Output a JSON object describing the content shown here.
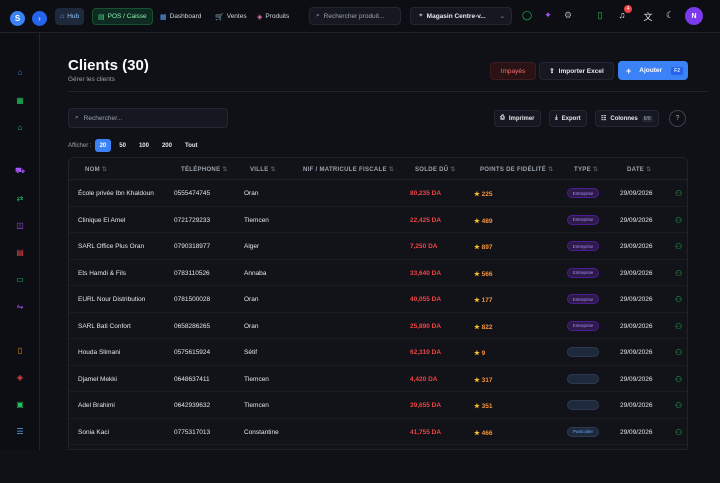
{
  "app": {
    "logo_letter": "S",
    "collapse_icon": "chevron-right-icon"
  },
  "topnav": {
    "hub": "Hub",
    "pos": "POS / Caisse",
    "dashboard": "Dashboard",
    "ventes": "Ventes",
    "produits": "Produits",
    "search_placeholder": "Rechercher produit...",
    "store": "Magasin Centre-v...",
    "notifications_count": "4",
    "avatar_letter": "N"
  },
  "page": {
    "title": "Clients (30)",
    "subtitle": "Gérer les clients",
    "impayes_label": "Impayés",
    "import_label": "Importer Excel",
    "add_label": "Ajouter",
    "add_shortcut": "F2",
    "search_placeholder": "Rechercher...",
    "print_label": "Imprimer",
    "export_label": "Export",
    "columns_label": "Colonnes",
    "columns_count": "8/8",
    "show_label": "Afficher :",
    "page_sizes": [
      "20",
      "50",
      "100",
      "200",
      "Tout"
    ],
    "page_size_selected": "20"
  },
  "table": {
    "columns": [
      "NOM",
      "TÉLÉPHONE",
      "VILLE",
      "NIF / MATRICULE FISCALE",
      "SOLDE DÛ",
      "POINTS DE FIDÉLITÉ",
      "TYPE",
      "DATE"
    ],
    "rows": [
      {
        "nom": "École privée Ibn Khaldoun",
        "tel": "0555474745",
        "ville": "Oran",
        "nif": "",
        "solde": "80,235 DA",
        "points": "225",
        "type": "Entreprise",
        "type_style": "ent",
        "date": "29/09/2026"
      },
      {
        "nom": "Clinique El Amel",
        "tel": "0721729233",
        "ville": "Tlemcen",
        "nif": "",
        "solde": "22,425 DA",
        "points": "489",
        "type": "Entreprise",
        "type_style": "ent",
        "date": "29/09/2026"
      },
      {
        "nom": "SARL Office Plus Oran",
        "tel": "0790318977",
        "ville": "Alger",
        "nif": "",
        "solde": "7,250 DA",
        "points": "897",
        "type": "Entreprise",
        "type_style": "ent",
        "date": "29/09/2026"
      },
      {
        "nom": "Ets Hamdi & Fils",
        "tel": "0783110526",
        "ville": "Annaba",
        "nif": "",
        "solde": "33,640 DA",
        "points": "566",
        "type": "Entreprise",
        "type_style": "ent",
        "date": "29/09/2026"
      },
      {
        "nom": "EURL Nour Distribution",
        "tel": "0781500028",
        "ville": "Oran",
        "nif": "",
        "solde": "40,055 DA",
        "points": "177",
        "type": "Entreprise",
        "type_style": "ent",
        "date": "29/09/2026"
      },
      {
        "nom": "SARL Bati Confort",
        "tel": "0658286265",
        "ville": "Oran",
        "nif": "",
        "solde": "25,890 DA",
        "points": "822",
        "type": "Entreprise",
        "type_style": "ent",
        "date": "29/09/2026"
      },
      {
        "nom": "Houda Slimani",
        "tel": "0575615924",
        "ville": "Sétif",
        "nif": "",
        "solde": "62,310 DA",
        "points": "9",
        "type": "",
        "type_style": "empty",
        "date": "29/09/2026"
      },
      {
        "nom": "Djamel Mekki",
        "tel": "0648637411",
        "ville": "Tlemcen",
        "nif": "",
        "solde": "4,420 DA",
        "points": "317",
        "type": "",
        "type_style": "empty",
        "date": "29/09/2026"
      },
      {
        "nom": "Adel Brahimi",
        "tel": "0642939632",
        "ville": "Tlemcen",
        "nif": "",
        "solde": "39,655 DA",
        "points": "351",
        "type": "",
        "type_style": "empty",
        "date": "29/09/2026"
      },
      {
        "nom": "Sonia Kaci",
        "tel": "0775317013",
        "ville": "Constantine",
        "nif": "",
        "solde": "41,755 DA",
        "points": "466",
        "type": "Particulier",
        "type_style": "part",
        "date": "29/09/2026"
      }
    ]
  },
  "colors": {
    "accent": "#3b82f6",
    "danger": "#ef4444",
    "points": "#fb923c",
    "success": "#22c55e",
    "bg": "#0f1117"
  }
}
